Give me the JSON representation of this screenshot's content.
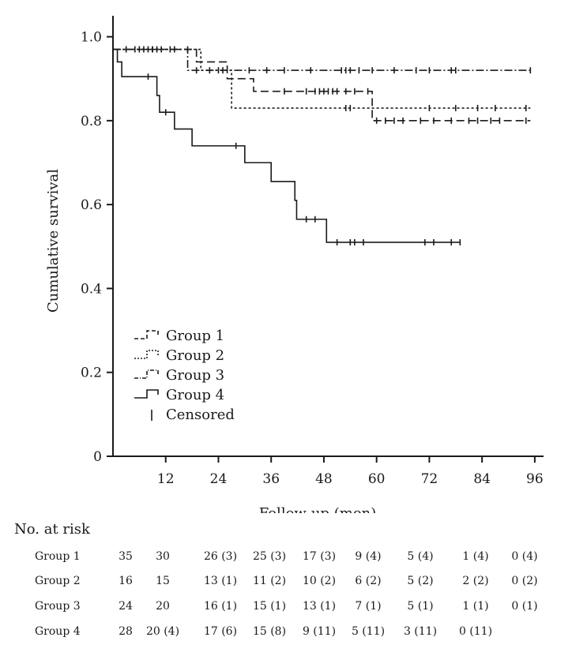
{
  "chart_data": {
    "type": "line",
    "step": true,
    "xlabel": "Follow-up (mon)",
    "ylabel": "Cumulative survival",
    "xlim": [
      0,
      98
    ],
    "ylim": [
      0,
      1.05
    ],
    "x_ticks": [
      "12",
      "24",
      "36",
      "48",
      "60",
      "72",
      "84",
      "96"
    ],
    "x_tick_values": [
      12,
      24,
      36,
      48,
      60,
      72,
      84,
      96
    ],
    "y_ticks": [
      "0",
      "0.2",
      "0.4",
      "0.6",
      "0.8",
      "1.0"
    ],
    "y_tick_values": [
      0,
      0.2,
      0.4,
      0.6,
      0.8,
      1.0
    ],
    "legend_position": "bottom-left",
    "censored_label": "Censored",
    "series": [
      {
        "name": "Group 1",
        "dash": "10,5",
        "steps": [
          [
            0,
            0.97
          ],
          [
            16,
            0.97
          ],
          [
            19,
            0.94
          ],
          [
            25,
            0.94
          ],
          [
            26,
            0.9
          ],
          [
            31,
            0.9
          ],
          [
            32,
            0.87
          ],
          [
            58,
            0.87
          ],
          [
            59,
            0.8
          ],
          [
            95,
            0.8
          ]
        ],
        "censored": [
          6,
          8,
          10,
          17,
          39,
          44,
          46,
          47,
          48,
          49,
          50,
          51,
          53,
          55,
          58,
          60,
          62,
          64,
          66,
          70,
          73,
          77,
          81,
          83,
          86,
          88,
          94
        ]
      },
      {
        "name": "Group 2",
        "dash": "3,3",
        "steps": [
          [
            0,
            0.97
          ],
          [
            19,
            0.97
          ],
          [
            20,
            0.92
          ],
          [
            26,
            0.92
          ],
          [
            27,
            0.83
          ],
          [
            95,
            0.83
          ]
        ],
        "censored": [
          7,
          9,
          14,
          53,
          54,
          72,
          78,
          83,
          87,
          94
        ]
      },
      {
        "name": "Group 3",
        "dash": "10,3,2,3",
        "steps": [
          [
            0,
            0.97
          ],
          [
            16,
            0.97
          ],
          [
            17,
            0.92
          ],
          [
            95,
            0.92
          ]
        ],
        "censored": [
          3,
          5,
          9,
          11,
          13,
          19,
          22,
          24,
          25,
          31,
          35,
          39,
          45,
          52,
          53,
          54,
          56,
          59,
          64,
          69,
          72,
          77,
          78,
          95
        ]
      },
      {
        "name": "Group 4",
        "dash": "",
        "steps": [
          [
            0,
            0.97
          ],
          [
            1,
            0.94
          ],
          [
            2,
            0.905
          ],
          [
            9,
            0.905
          ],
          [
            10,
            0.86
          ],
          [
            10.6,
            0.82
          ],
          [
            13,
            0.82
          ],
          [
            14,
            0.78
          ],
          [
            17,
            0.78
          ],
          [
            18,
            0.74
          ],
          [
            29,
            0.74
          ],
          [
            30,
            0.7
          ],
          [
            35,
            0.7
          ],
          [
            36,
            0.655
          ],
          [
            41,
            0.655
          ],
          [
            41.4,
            0.61
          ],
          [
            41.8,
            0.565
          ],
          [
            48,
            0.565
          ],
          [
            48.6,
            0.51
          ],
          [
            79,
            0.51
          ]
        ],
        "censored": [
          8,
          12,
          28,
          44,
          46,
          51,
          54,
          55,
          57,
          71,
          73,
          77,
          79
        ]
      }
    ]
  },
  "risk_table": {
    "title": "No. at risk",
    "groups": [
      {
        "name": "Group 1",
        "values": [
          "35",
          "30",
          "26 (3)",
          "25 (3)",
          "17 (3)",
          "9 (4)",
          "5 (4)",
          "1 (4)",
          "0 (4)"
        ]
      },
      {
        "name": "Group 2",
        "values": [
          "16",
          "15",
          "13 (1)",
          "11 (2)",
          "10 (2)",
          "6 (2)",
          "5 (2)",
          "2 (2)",
          "0 (2)"
        ]
      },
      {
        "name": "Group 3",
        "values": [
          "24",
          "20",
          "16 (1)",
          "15 (1)",
          "13 (1)",
          "7 (1)",
          "5 (1)",
          "1 (1)",
          "0 (1)"
        ]
      },
      {
        "name": "Group 4",
        "values": [
          "28",
          "20 (4)",
          "17 (6)",
          "15 (8)",
          "9 (11)",
          "5 (11)",
          "3 (11)",
          "0 (11)",
          ""
        ]
      }
    ]
  }
}
